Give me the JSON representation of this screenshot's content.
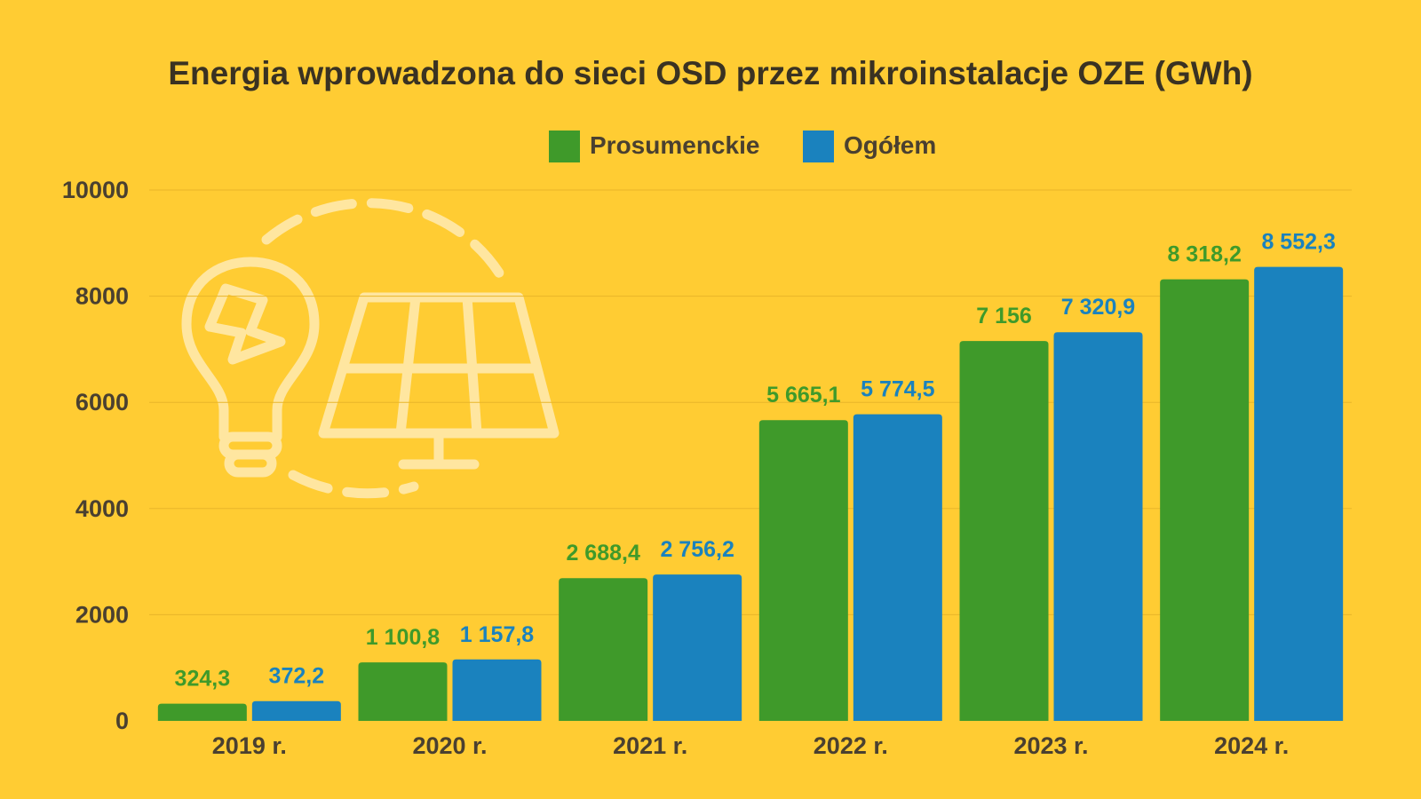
{
  "chart_data": {
    "type": "bar",
    "title": "Energia wprowadzona do sieci OSD przez mikroinstalacje OZE (GWh)",
    "categories": [
      "2019 r.",
      "2020 r.",
      "2021 r.",
      "2022 r.",
      "2023 r.",
      "2024 r."
    ],
    "series": [
      {
        "name": "Prosumenckie",
        "color": "#3F9A2A",
        "values": [
          324.3,
          1100.8,
          2688.4,
          5665.1,
          7156,
          8318.2
        ],
        "labels": [
          "324,3",
          "1 100,8",
          "2 688,4",
          "5 665,1",
          "7 156",
          "8 318,2"
        ]
      },
      {
        "name": "Ogółem",
        "color": "#1A82BE",
        "values": [
          372.2,
          1157.8,
          2756.2,
          5774.5,
          7320.9,
          8552.3
        ],
        "labels": [
          "372,2",
          "1 157,8",
          "2 756,2",
          "5 774,5",
          "7 320,9",
          "8 552,3"
        ]
      }
    ],
    "yticks": [
      "0",
      "2000",
      "4000",
      "6000",
      "8000",
      "10000"
    ],
    "ylim": [
      0,
      10000
    ],
    "grid": true,
    "legend_position": "top-center",
    "background_color": "#FFCC33",
    "decoration_icons": [
      "light-bulb-icon",
      "solar-panel-icon"
    ]
  }
}
